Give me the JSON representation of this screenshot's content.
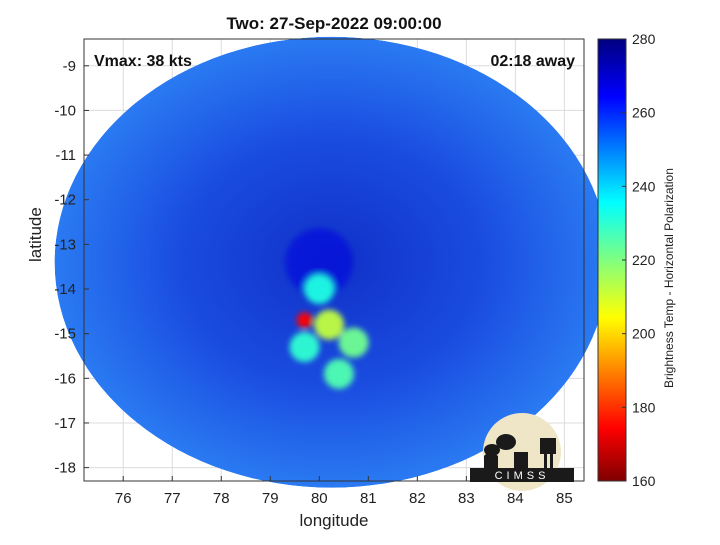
{
  "title": "Two: 27-Sep-2022 09:00:00",
  "vmax_label": "Vmax: 38 kts",
  "time_label": "02:18 away",
  "xlabel": "longitude",
  "ylabel": "latitude",
  "colorbar_label": "Brightness Temp - Horizontal Polarization",
  "logo_text": "CIMSS",
  "chart_data": {
    "type": "heatmap",
    "xlim": [
      75.2,
      85.4
    ],
    "ylim": [
      -18.3,
      -8.4
    ],
    "x_ticks": [
      76,
      77,
      78,
      79,
      80,
      81,
      82,
      83,
      84,
      85
    ],
    "y_ticks": [
      -9,
      -10,
      -11,
      -12,
      -13,
      -14,
      -15,
      -16,
      -17,
      -18
    ],
    "grid": true,
    "colorbar": {
      "min": 160,
      "max": 280,
      "ticks": [
        280,
        260,
        240,
        220,
        200,
        180,
        160
      ]
    },
    "swath": {
      "center_lon": 80.25,
      "center_lat": -13.4,
      "radius_lon": 5.65,
      "radius_lat": 5.05
    },
    "features": [
      {
        "lon": 79.7,
        "lat": -14.7,
        "tb": 175
      },
      {
        "lon": 80.2,
        "lat": -14.8,
        "tb": 212
      },
      {
        "lon": 80.7,
        "lat": -15.2,
        "tb": 222
      },
      {
        "lon": 80.4,
        "lat": -15.9,
        "tb": 226
      },
      {
        "lon": 79.7,
        "lat": -15.3,
        "tb": 230
      },
      {
        "lon": 80.0,
        "lat": -14.0,
        "tb": 232
      },
      {
        "lon": 80.0,
        "lat": -13.4,
        "tb": 268
      }
    ]
  }
}
